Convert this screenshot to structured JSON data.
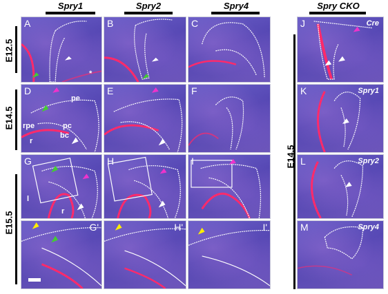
{
  "columns": {
    "c1": "Spry1",
    "c2": "Spry2",
    "c3": "Spry4",
    "cko": "Spry CKO"
  },
  "rows": {
    "r1": "E12.5",
    "r2": "E14.5",
    "r3": "E15.5",
    "cko_stage": "E14.5"
  },
  "panels": {
    "A": "A",
    "B": "B",
    "C": "C",
    "D": "D",
    "E": "E",
    "F": "F",
    "G": "G",
    "H": "H",
    "I": "I",
    "Gp": "G'",
    "Hp": "H'",
    "Ip": "I'",
    "J": "J",
    "K": "K",
    "L": "L",
    "M": "M"
  },
  "cko_tags": {
    "J": "Cre",
    "K": "Spry1",
    "L": "Spry2",
    "M": "Spry4"
  },
  "annotations": {
    "asterisk": "*",
    "pe": "pe",
    "rpe": "rpe",
    "pc": "pc",
    "bc": "bc",
    "r": "r",
    "l": "l",
    "r2": "r"
  },
  "colors": {
    "tissue": "#5a4cb8",
    "signal": "#ff2a6a",
    "outline": "#ffffff",
    "arrow_white": "#ffffff",
    "arrow_green": "#44cc33",
    "arrow_magenta": "#ee33cc",
    "arrow_yellow": "#ffee00"
  }
}
